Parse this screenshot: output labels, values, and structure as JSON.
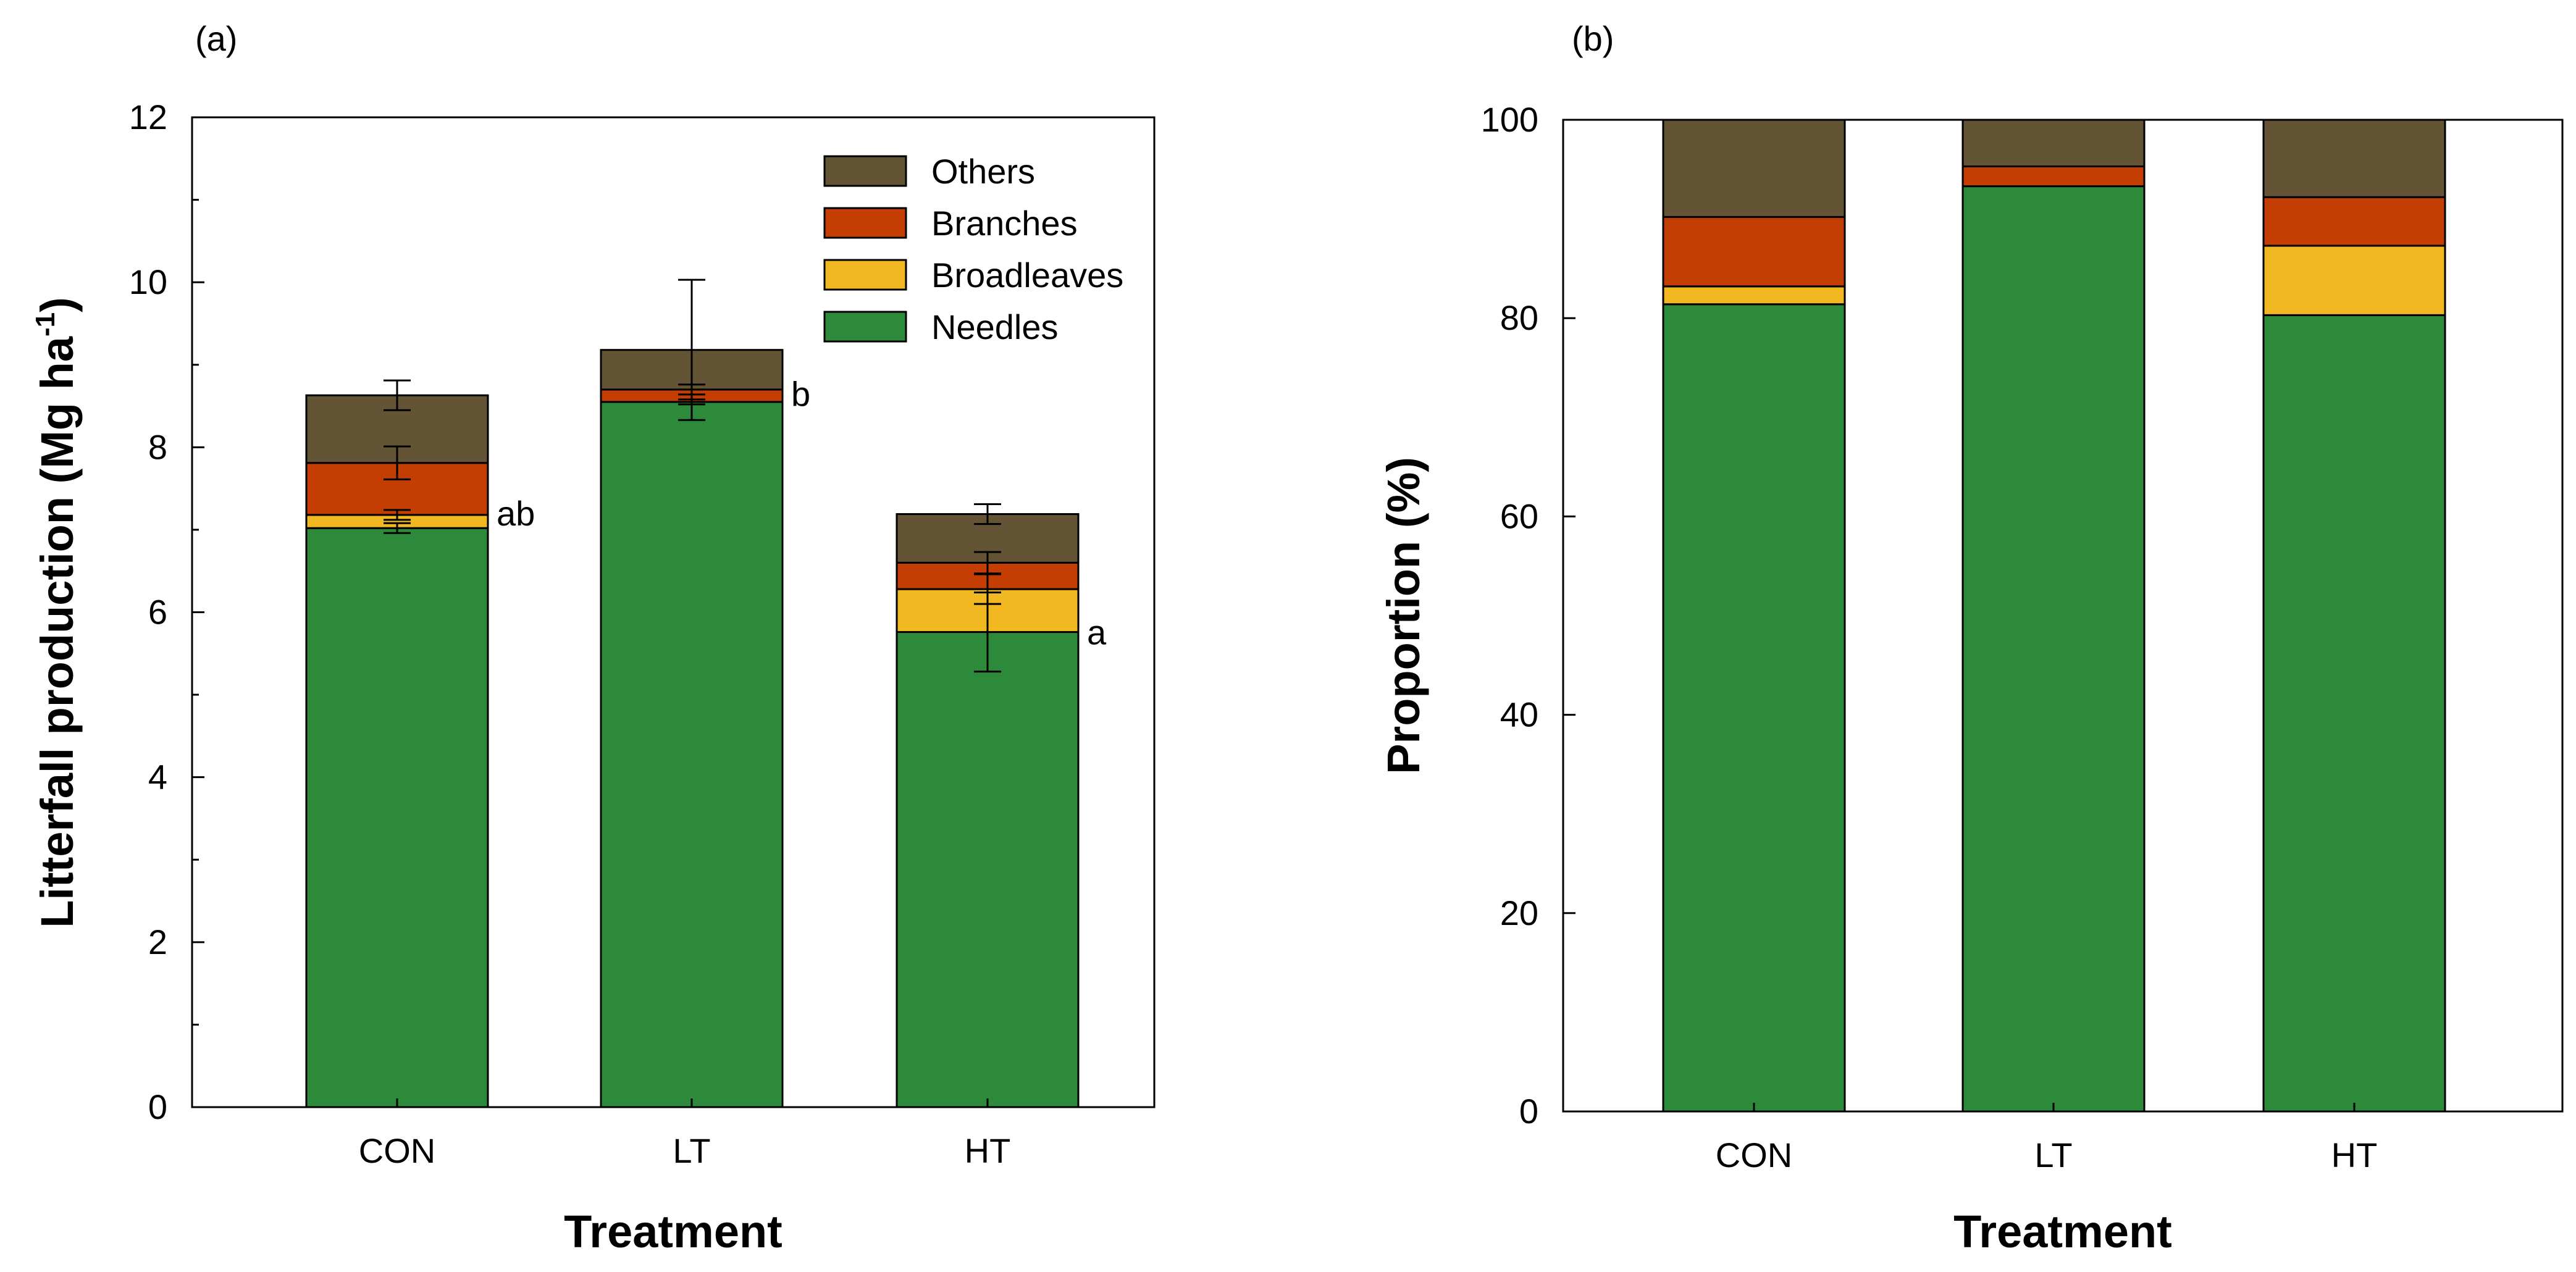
{
  "colors": {
    "Others": "#625434",
    "Branches": "#c43d03",
    "Broadleaves": "#f2b821",
    "Needles": "#2e8a3b"
  },
  "chart_data": [
    {
      "type": "bar",
      "stacked": true,
      "panel_label": "(a)",
      "title": "",
      "xlabel": "Treatment",
      "ylabel": {
        "main": "Litterfall production (Mg ha",
        "sup": "-1",
        "close": ")"
      },
      "ylim": [
        0,
        12
      ],
      "yticks": [
        "0",
        "2",
        "4",
        "6",
        "8",
        "10",
        "12"
      ],
      "ytick_values": [
        0,
        2,
        4,
        6,
        8,
        10,
        12
      ],
      "categories": [
        "CON",
        "LT",
        "HT"
      ],
      "series": [
        {
          "name": "Needles",
          "values": [
            7.02,
            8.55,
            5.76
          ],
          "error": [
            0.06,
            0.03,
            0.48
          ]
        },
        {
          "name": "Broadleaves",
          "values": [
            0.16,
            0.0,
            0.52
          ],
          "error": [
            0.06,
            0.0,
            0.18
          ]
        },
        {
          "name": "Branches",
          "values": [
            0.63,
            0.15,
            0.32
          ],
          "error": [
            0.2,
            0.06,
            0.13
          ]
        },
        {
          "name": "Others",
          "values": [
            0.82,
            0.48,
            0.59
          ],
          "error": [
            0.18,
            0.85,
            0.12
          ]
        }
      ],
      "legend": {
        "position": "top-right",
        "order": [
          "Others",
          "Branches",
          "Broadleaves",
          "Needles"
        ],
        "labels": [
          "Others",
          "Branches",
          "Broadleaves",
          "Needles"
        ]
      },
      "annotations": [
        "ab",
        "b",
        "a"
      ]
    },
    {
      "type": "bar",
      "stacked": true,
      "panel_label": "(b)",
      "title": "",
      "xlabel": "Treatment",
      "ylabel": "Proportion (%)",
      "ylim": [
        0,
        100
      ],
      "yticks": [
        "0",
        "20",
        "40",
        "60",
        "80",
        "100"
      ],
      "ytick_values": [
        0,
        20,
        40,
        60,
        80,
        100
      ],
      "categories": [
        "CON",
        "LT",
        "HT"
      ],
      "series": [
        {
          "name": "Needles",
          "values": [
            81.4,
            93.3,
            80.3
          ]
        },
        {
          "name": "Broadleaves",
          "values": [
            1.8,
            0.0,
            7.0
          ]
        },
        {
          "name": "Branches",
          "values": [
            7.0,
            2.0,
            4.9
          ]
        },
        {
          "name": "Others",
          "values": [
            9.8,
            4.7,
            7.8
          ]
        }
      ]
    }
  ]
}
